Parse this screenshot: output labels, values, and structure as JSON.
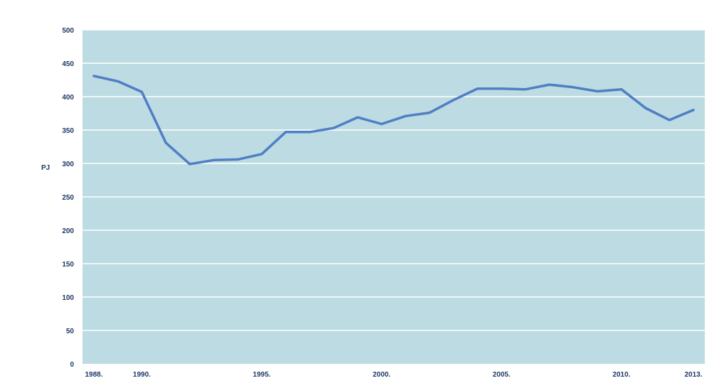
{
  "chart_data": {
    "type": "line",
    "title": "",
    "xlabel": "",
    "ylabel": "PJ",
    "ylim": [
      0,
      500
    ],
    "yticks": [
      0,
      50,
      100,
      150,
      200,
      250,
      300,
      350,
      400,
      450,
      500
    ],
    "xticks": [
      "1988.",
      "1990.",
      "1995.",
      "2000.",
      "2005.",
      "2010.",
      "2013."
    ],
    "xticks_years": [
      1988,
      1990,
      1995,
      2000,
      2005,
      2010,
      2013
    ],
    "grid": true,
    "colors": {
      "plot_bg": "#bcdbe2",
      "grid": "#ffffff",
      "line": "#4f7fc4",
      "text": "#1f3864"
    },
    "x": [
      1988,
      1989,
      1990,
      1991,
      1992,
      1993,
      1994,
      1995,
      1996,
      1997,
      1998,
      1999,
      2000,
      2001,
      2002,
      2003,
      2004,
      2005,
      2006,
      2007,
      2008,
      2009,
      2010,
      2011,
      2012,
      2013
    ],
    "series": [
      {
        "values": [
          431,
          423,
          407,
          331,
          299,
          305,
          306,
          314,
          347,
          347,
          353,
          369,
          359,
          371,
          376,
          395,
          412,
          412,
          411,
          418,
          414,
          408,
          411,
          383,
          365,
          380
        ]
      }
    ]
  }
}
